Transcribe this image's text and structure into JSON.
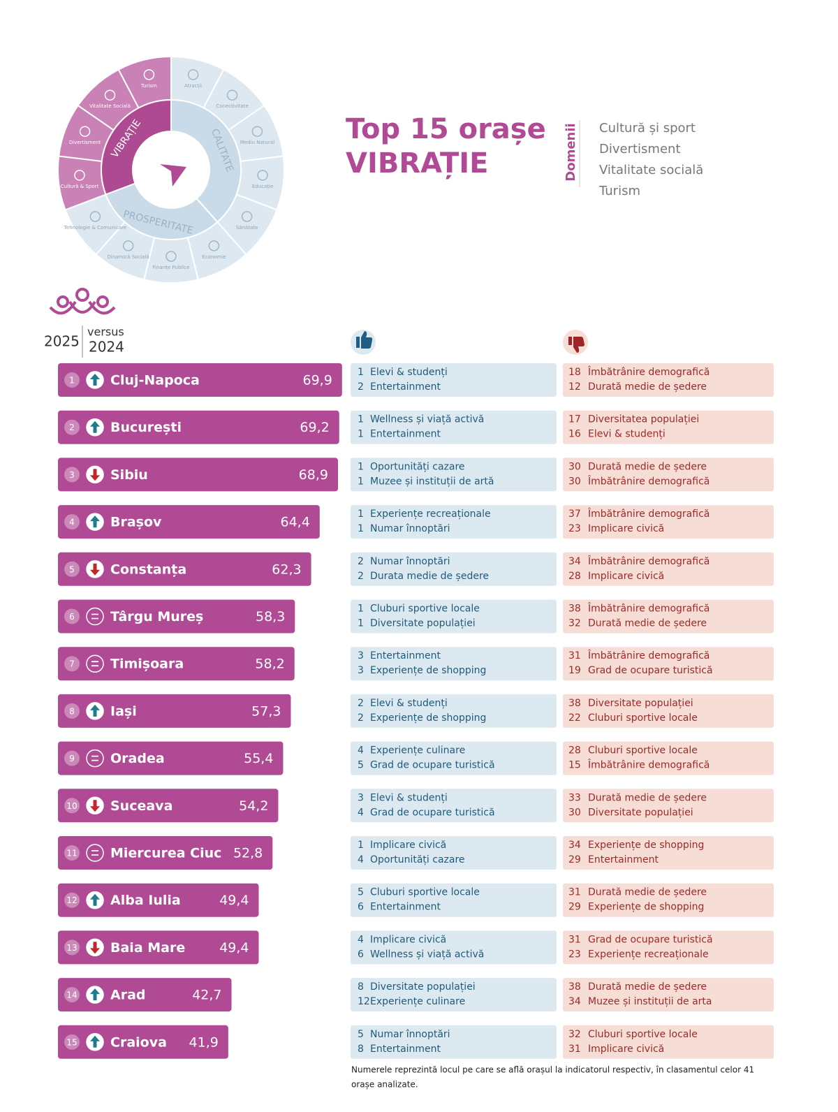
{
  "wheel": {
    "groups": [
      {
        "label": "CALITATE",
        "color": "#c9dbe8",
        "segment_color": "#dde8f0",
        "segments": [
          "Atracții",
          "Conectivitate",
          "Mediu Natural",
          "Educație",
          "Sănătate"
        ]
      },
      {
        "label": "PROSPERITATE",
        "color": "#c9dbe8",
        "segment_color": "#dde8f0",
        "segments": [
          "Economie",
          "Finanțe Publice",
          "Dinamică Socială",
          "Tehnologie & Comunicare"
        ]
      },
      {
        "label": "VIBRAȚIE",
        "color": "#ad4a92",
        "segment_color": "#c981b6",
        "segments": [
          "Cultură & Sport",
          "Divertisment",
          "Vitalitate Socială",
          "Turism"
        ]
      }
    ]
  },
  "title": [
    "Top 15 orașe",
    "VIBRAȚIE"
  ],
  "domains": {
    "label": "Domenii",
    "items": [
      "Cultură și sport",
      "Divertisment",
      "Vitalitate socială",
      "Turism"
    ]
  },
  "header": {
    "year": "2025",
    "versus": "versus",
    "previous": "2024"
  },
  "rows": [
    {
      "rank": 1,
      "city": "Cluj-Napoca",
      "score": 69.9,
      "score_label": "69,9",
      "trend": "up",
      "pros": [
        {
          "rank": 1,
          "label": "Elevi & studenți"
        },
        {
          "rank": 2,
          "label": "Entertainment"
        }
      ],
      "cons": [
        {
          "rank": 18,
          "label": "Îmbătrânire demografică"
        },
        {
          "rank": 12,
          "label": "Durată medie de ședere"
        }
      ]
    },
    {
      "rank": 2,
      "city": "București",
      "score": 69.2,
      "score_label": "69,2",
      "trend": "up",
      "pros": [
        {
          "rank": 1,
          "label": "Wellness și viață activă"
        },
        {
          "rank": 1,
          "label": "Entertainment"
        }
      ],
      "cons": [
        {
          "rank": 17,
          "label": "Diversitatea populației"
        },
        {
          "rank": 16,
          "label": "Elevi & studenți"
        }
      ]
    },
    {
      "rank": 3,
      "city": "Sibiu",
      "score": 68.9,
      "score_label": "68,9",
      "trend": "down",
      "pros": [
        {
          "rank": 1,
          "label": "Oportunități cazare"
        },
        {
          "rank": 1,
          "label": "Muzee și instituții de artă"
        }
      ],
      "cons": [
        {
          "rank": 30,
          "label": "Durată medie de ședere"
        },
        {
          "rank": 30,
          "label": "Îmbătrânire demografică"
        }
      ]
    },
    {
      "rank": 4,
      "city": "Brașov",
      "score": 64.4,
      "score_label": "64,4",
      "trend": "up",
      "pros": [
        {
          "rank": 1,
          "label": "Experiențe recreaționale"
        },
        {
          "rank": 1,
          "label": "Numar înnoptări"
        }
      ],
      "cons": [
        {
          "rank": 37,
          "label": "Îmbătrânire demografică"
        },
        {
          "rank": 23,
          "label": "Implicare civică"
        }
      ]
    },
    {
      "rank": 5,
      "city": "Constanța",
      "score": 62.3,
      "score_label": "62,3",
      "trend": "down",
      "pros": [
        {
          "rank": 2,
          "label": "Numar înnoptări"
        },
        {
          "rank": 2,
          "label": "Durata medie de ședere"
        }
      ],
      "cons": [
        {
          "rank": 34,
          "label": "Îmbătrânire demografică"
        },
        {
          "rank": 28,
          "label": "Implicare civică"
        }
      ]
    },
    {
      "rank": 6,
      "city": "Târgu Mureș",
      "score": 58.3,
      "score_label": "58,3",
      "trend": "equal",
      "pros": [
        {
          "rank": 1,
          "label": "Cluburi sportive locale"
        },
        {
          "rank": 1,
          "label": "Diversitate populației"
        }
      ],
      "cons": [
        {
          "rank": 38,
          "label": "Îmbătrânire demografică"
        },
        {
          "rank": 32,
          "label": "Durată medie de ședere"
        }
      ]
    },
    {
      "rank": 7,
      "city": "Timișoara",
      "score": 58.2,
      "score_label": "58,2",
      "trend": "equal",
      "pros": [
        {
          "rank": 3,
          "label": "Entertainment"
        },
        {
          "rank": 3,
          "label": "Experiențe de shopping"
        }
      ],
      "cons": [
        {
          "rank": 31,
          "label": "Îmbătrânire demografică"
        },
        {
          "rank": 19,
          "label": "Grad de ocupare turistică"
        }
      ]
    },
    {
      "rank": 8,
      "city": "Iași",
      "score": 57.3,
      "score_label": "57,3",
      "trend": "up",
      "pros": [
        {
          "rank": 2,
          "label": "Elevi & studenți"
        },
        {
          "rank": 2,
          "label": "Experiențe de shopping"
        }
      ],
      "cons": [
        {
          "rank": 38,
          "label": "Diversitate populației"
        },
        {
          "rank": 22,
          "label": "Cluburi sportive locale"
        }
      ]
    },
    {
      "rank": 9,
      "city": "Oradea",
      "score": 55.4,
      "score_label": "55,4",
      "trend": "equal",
      "pros": [
        {
          "rank": 4,
          "label": "Experiențe culinare"
        },
        {
          "rank": 5,
          "label": "Grad de ocupare turistică"
        }
      ],
      "cons": [
        {
          "rank": 28,
          "label": "Cluburi sportive locale"
        },
        {
          "rank": 15,
          "label": "Îmbătrânire demografică"
        }
      ]
    },
    {
      "rank": 10,
      "city": "Suceava",
      "score": 54.2,
      "score_label": "54,2",
      "trend": "down",
      "pros": [
        {
          "rank": 3,
          "label": "Elevi & studenți"
        },
        {
          "rank": 4,
          "label": "Grad de ocupare turistică"
        }
      ],
      "cons": [
        {
          "rank": 33,
          "label": "Durată medie de ședere"
        },
        {
          "rank": 30,
          "label": "Diversitate populației"
        }
      ]
    },
    {
      "rank": 11,
      "city": "Miercurea Ciuc",
      "score": 52.8,
      "score_label": "52,8",
      "trend": "equal",
      "pros": [
        {
          "rank": 1,
          "label": "Implicare civică"
        },
        {
          "rank": 4,
          "label": "Oportunități cazare"
        }
      ],
      "cons": [
        {
          "rank": 34,
          "label": "Experiențe de shopping"
        },
        {
          "rank": 29,
          "label": "Entertainment"
        }
      ]
    },
    {
      "rank": 12,
      "city": "Alba Iulia",
      "score": 49.4,
      "score_label": "49,4",
      "trend": "up",
      "pros": [
        {
          "rank": 5,
          "label": "Cluburi sportive locale"
        },
        {
          "rank": 6,
          "label": "Entertainment"
        }
      ],
      "cons": [
        {
          "rank": 31,
          "label": "Durată medie de ședere"
        },
        {
          "rank": 29,
          "label": "Experiențe de shopping"
        }
      ]
    },
    {
      "rank": 13,
      "city": "Baia Mare",
      "score": 49.4,
      "score_label": "49,4",
      "trend": "down",
      "pros": [
        {
          "rank": 4,
          "label": "Implicare civică"
        },
        {
          "rank": 6,
          "label": "Wellness și viață activă"
        }
      ],
      "cons": [
        {
          "rank": 31,
          "label": "Grad de ocupare turistică"
        },
        {
          "rank": 23,
          "label": "Experiențe recreaționale"
        }
      ]
    },
    {
      "rank": 14,
      "city": "Arad",
      "score": 42.7,
      "score_label": "42,7",
      "trend": "up",
      "pros": [
        {
          "rank": 8,
          "label": "Diversitate populației"
        },
        {
          "rank": 12,
          "label": "Experiențe culinare"
        }
      ],
      "cons": [
        {
          "rank": 38,
          "label": "Durată medie de ședere"
        },
        {
          "rank": 34,
          "label": "Muzee și instituții de arta"
        }
      ]
    },
    {
      "rank": 15,
      "city": "Craiova",
      "score": 41.9,
      "score_label": "41,9",
      "trend": "up",
      "pros": [
        {
          "rank": 5,
          "label": "Numar înnoptări"
        },
        {
          "rank": 8,
          "label": "Entertainment"
        }
      ],
      "cons": [
        {
          "rank": 32,
          "label": "Cluburi sportive locale"
        },
        {
          "rank": 31,
          "label": "Implicare civică"
        }
      ]
    }
  ],
  "footnote": [
    "Numerele reprezintă locul pe care se află orașul la indicatorul respectiv, în clasamentul celor 41",
    "orașe analizate."
  ]
}
